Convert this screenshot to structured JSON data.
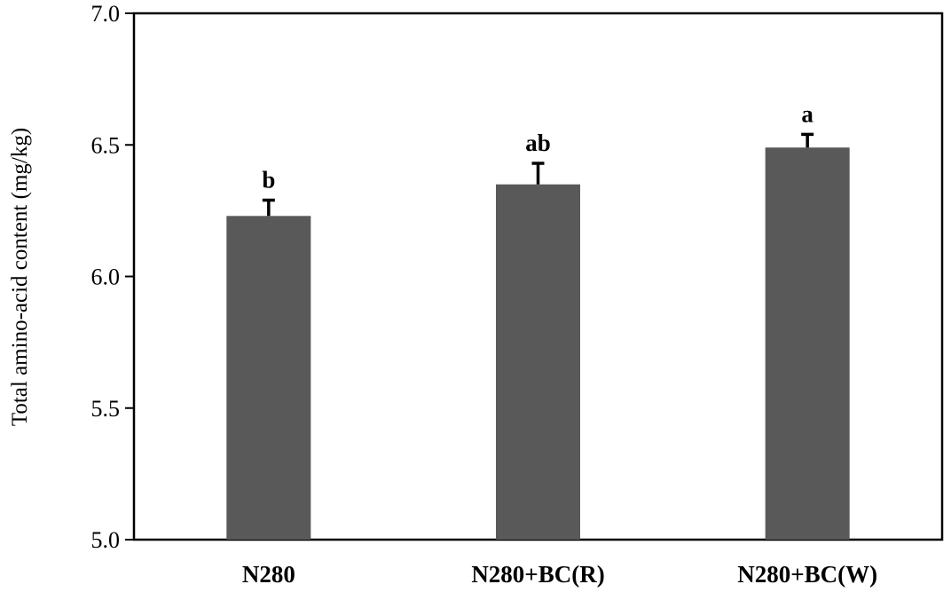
{
  "chart_data": {
    "type": "bar",
    "title": "",
    "xlabel": "",
    "ylabel": "Total amino-acid content (mg/kg)",
    "ylim": [
      5.0,
      7.0
    ],
    "yticks": [
      "5.0",
      "5.5",
      "6.0",
      "6.5",
      "7.0"
    ],
    "grid": false,
    "legend": "none",
    "categories": [
      "N280",
      "N280+BC(R)",
      "N280+BC(W)"
    ],
    "values": [
      6.23,
      6.35,
      6.49
    ],
    "error_upper": [
      0.06,
      0.08,
      0.05
    ],
    "significance": [
      "b",
      "ab",
      "a"
    ],
    "bar_color": "#595959",
    "axis_color": "#000000"
  }
}
